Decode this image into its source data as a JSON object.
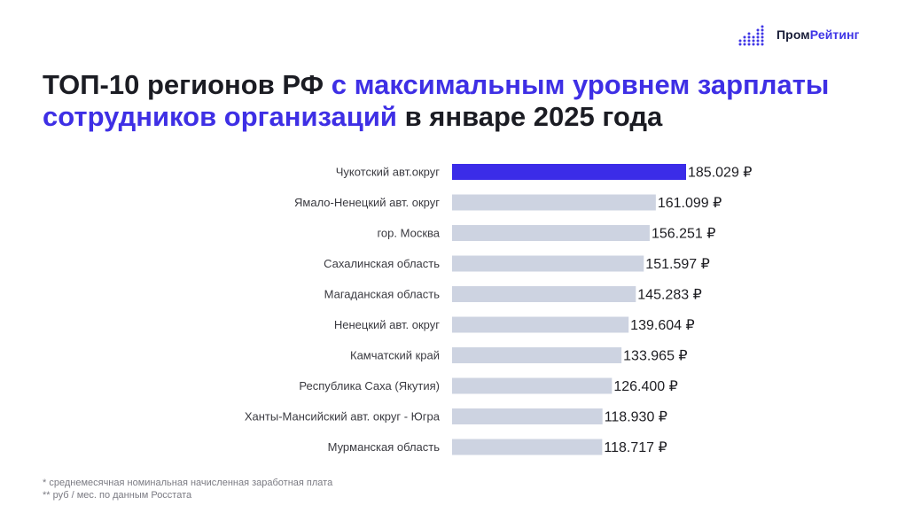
{
  "brand": {
    "name_part1": "Пром",
    "name_part2": "Рейтинг",
    "logo_icon": "bar-dots-icon",
    "accent_color": "#3f35e6"
  },
  "title": {
    "part1": "ТОП-10 регионов РФ ",
    "part2": "с максимальным уровнем зарплаты сотрудников организаций",
    "part3": " в январе 2025 года"
  },
  "chart_data": {
    "type": "bar",
    "orientation": "horizontal",
    "categories": [
      "Чукотский авт.округ",
      "Ямало-Ненецкий авт. округ",
      "гор. Москва",
      "Сахалинская область",
      "Магаданская область",
      "Ненецкий авт. округ",
      "Камчатский край",
      "Республика Саха (Якутия)",
      "Ханты-Мансийский авт. округ - Югра",
      "Мурманская область"
    ],
    "values": [
      185029,
      161099,
      156251,
      151597,
      145283,
      139604,
      133965,
      126400,
      118930,
      118717
    ],
    "value_labels": [
      "185.029 ₽",
      "161.099 ₽",
      "156.251 ₽",
      "151.597 ₽",
      "145.283 ₽",
      "139.604 ₽",
      "133.965 ₽",
      "126.400 ₽",
      "118.930 ₽",
      "118.717 ₽"
    ],
    "colors": {
      "highlight": "#3b2ce8",
      "default": "#cdd3e1"
    },
    "highlight_index": 0,
    "xlim": [
      0,
      185029
    ],
    "grid": false,
    "legend": "none"
  },
  "footnotes": {
    "line1": "* среднемесячная номинальная начисленная заработная плата",
    "line2": "** руб / мес. по данным Росстата"
  }
}
